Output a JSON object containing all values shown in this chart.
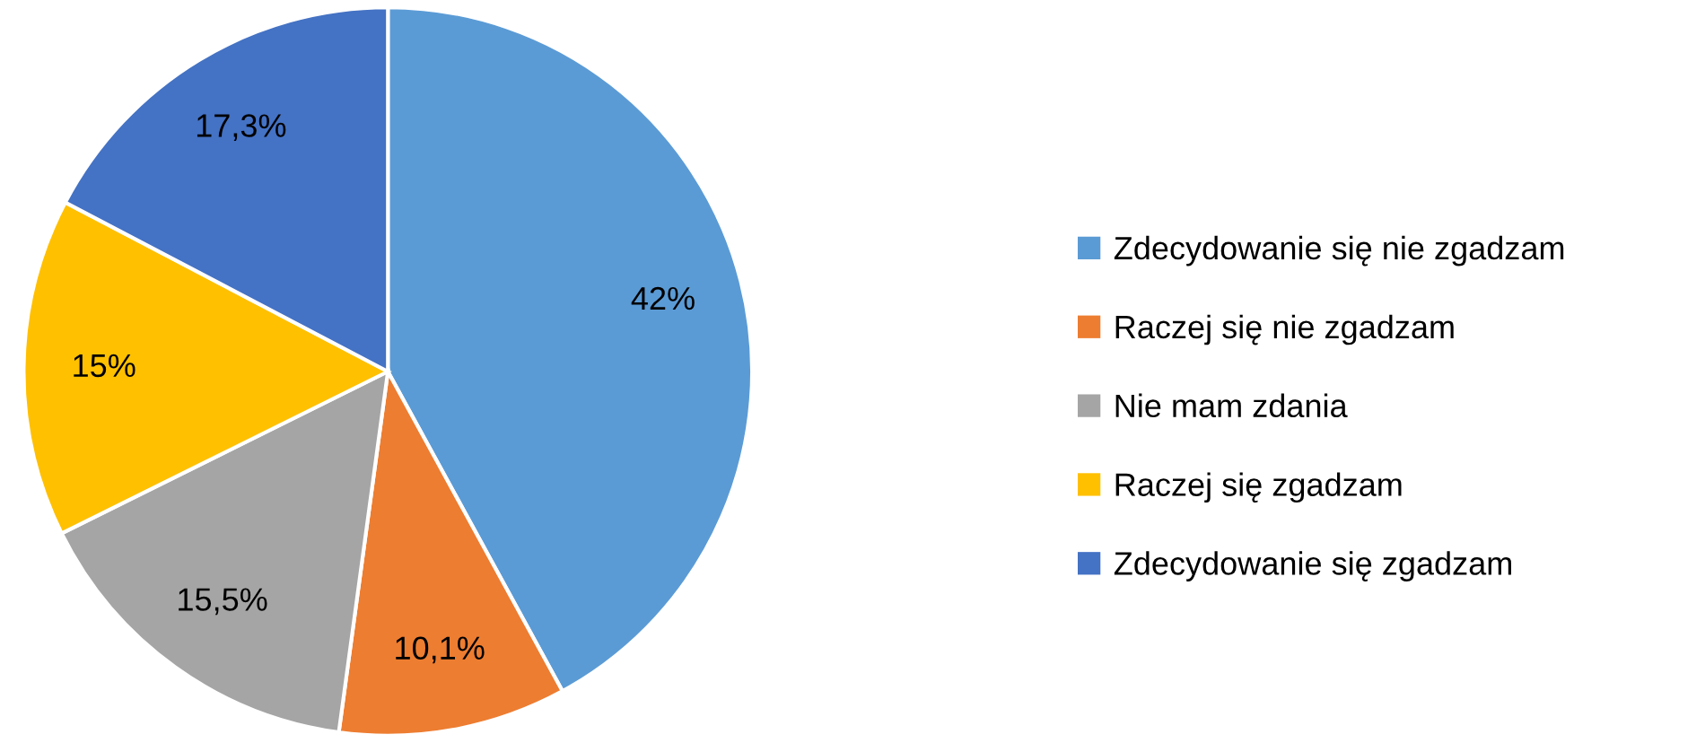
{
  "chart_data": {
    "type": "pie",
    "categories": [
      "Zdecydowanie się nie zgadzam",
      "Raczej się nie zgadzam",
      "Nie mam zdania",
      "Raczej się zgadzam",
      "Zdecydowanie się zgadzam"
    ],
    "values": [
      42,
      10.1,
      15.5,
      15,
      17.3
    ],
    "value_labels": [
      "42%",
      "10,1%",
      "15,5%",
      "15%",
      "17,3%"
    ],
    "colors": [
      "#5b9bd5",
      "#ed7d31",
      "#a5a5a5",
      "#ffc000",
      "#4472c4"
    ],
    "legend": "right"
  }
}
